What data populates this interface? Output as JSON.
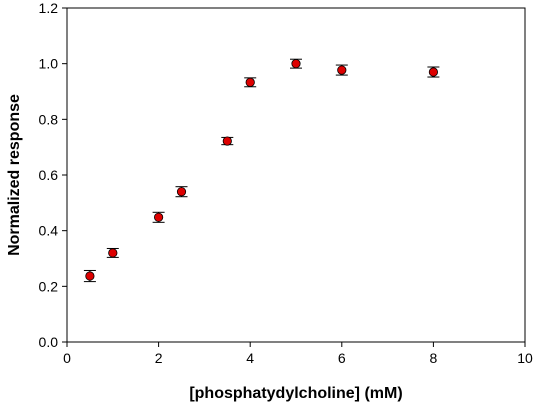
{
  "chart_data": {
    "type": "scatter",
    "title": "",
    "xlabel": "[phosphatydylcholine] (mM)",
    "ylabel": "Normalized response",
    "xlim": [
      0,
      10
    ],
    "ylim": [
      0,
      1.2
    ],
    "x_ticks": [
      0,
      2,
      4,
      6,
      8,
      10
    ],
    "y_ticks": [
      0.0,
      0.2,
      0.4,
      0.6,
      0.8,
      1.0,
      1.2
    ],
    "x_tick_labels": [
      "0",
      "2",
      "4",
      "6",
      "8",
      "10"
    ],
    "y_tick_labels": [
      "0.0",
      "0.2",
      "0.4",
      "0.6",
      "0.8",
      "1.0",
      "1.2"
    ],
    "grid": false,
    "marker_color": "#dd0000",
    "series": [
      {
        "x": [
          0.5,
          1.0,
          2.0,
          2.5,
          3.5,
          4.0,
          5.0,
          6.0,
          8.0
        ],
        "y": [
          0.237,
          0.32,
          0.448,
          0.54,
          0.722,
          0.933,
          1.0,
          0.977,
          0.97
        ],
        "error": [
          0.02,
          0.016,
          0.018,
          0.018,
          0.013,
          0.016,
          0.016,
          0.018,
          0.018
        ]
      }
    ]
  }
}
